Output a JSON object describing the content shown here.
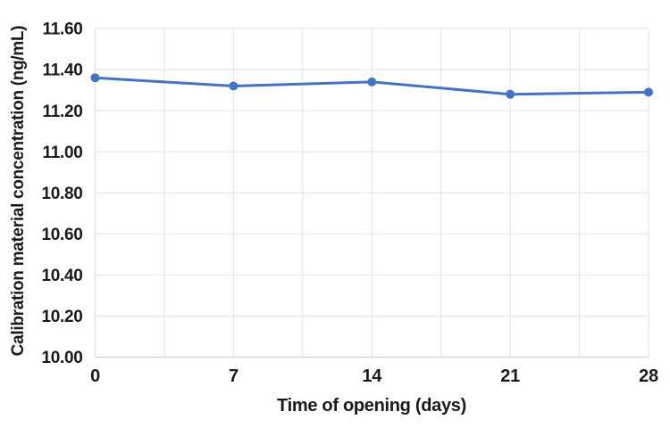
{
  "chart_data": {
    "type": "line",
    "title": "",
    "xlabel": "Time of opening (days)",
    "ylabel": "Calibration material concentration (ng/mL)",
    "x": [
      0,
      7,
      14,
      21,
      28
    ],
    "x_tick_labels": [
      "0",
      "7",
      "14",
      "21",
      "28"
    ],
    "series": [
      {
        "name": "Calibration material concentration (ng/mL)",
        "values": [
          11.36,
          11.32,
          11.34,
          11.28,
          11.29
        ]
      }
    ],
    "ylim": [
      10.0,
      11.6
    ],
    "xlim": [
      0,
      28
    ],
    "y_tick_step": 0.2,
    "y_tick_labels": [
      "11.60",
      "11.40",
      "11.20",
      "11.00",
      "10.80",
      "10.60",
      "10.40",
      "10.20",
      "10.00"
    ],
    "x_gridline_step_days": 3.5,
    "grid": true,
    "legend_position": "none",
    "marker": "circle",
    "colors": {
      "line": "#4472C4",
      "marker": "#4472C4",
      "gridline": "#E2E2E2",
      "axis_line": "#D0D0D0",
      "text": "#1a1a1a",
      "background": "#ffffff"
    }
  }
}
